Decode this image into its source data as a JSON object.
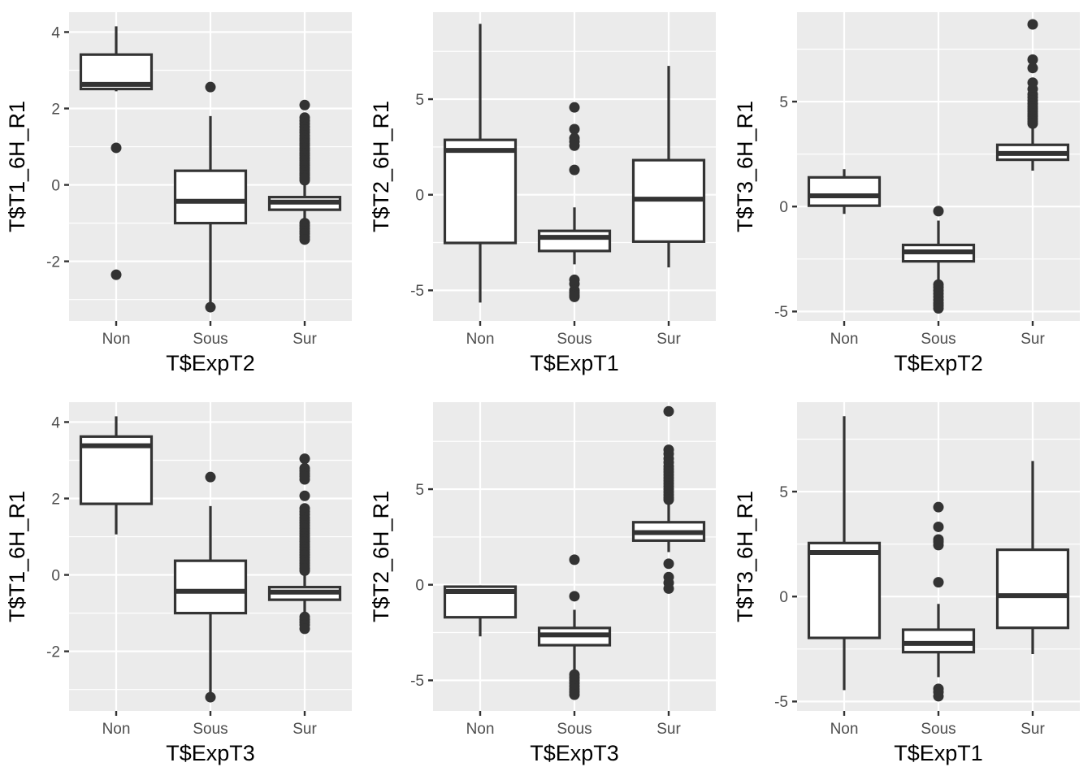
{
  "figure": {
    "rows": 2,
    "cols": 3,
    "background_color": "#FFFFFF",
    "panel_background_color": "#EBEBEB",
    "grid_color": "#FFFFFF",
    "box_stroke_color": "#333333",
    "box_fill_color": "#FFFFFF",
    "outlier_color": "#333333",
    "tick_text_color": "#4D4D4D",
    "axis_title_color": "#000000",
    "tick_mark_color": "#333333"
  },
  "chart_data": [
    {
      "type": "boxplot",
      "ylabel": "T$T1_6H_R1",
      "xlabel": "T$ExpT2",
      "categories": [
        "Non",
        "Sous",
        "Sur"
      ],
      "yticks": [
        -2,
        0,
        2,
        4
      ],
      "yticks_minor": [
        -3,
        -1,
        1,
        3
      ],
      "ylim": [
        -3.56,
        4.52
      ],
      "grid": true,
      "legend": "none",
      "boxes": [
        {
          "category": "Non",
          "q1": 2.51,
          "median": 2.63,
          "q3": 3.41,
          "whisker_low": 2.45,
          "whisker_high": 4.15,
          "outliers": [
            0.97,
            -2.35
          ]
        },
        {
          "category": "Sous",
          "q1": -1.0,
          "median": -0.43,
          "q3": 0.37,
          "whisker_low": -3.12,
          "whisker_high": 1.8,
          "outliers": [
            2.56,
            -3.2
          ]
        },
        {
          "category": "Sur",
          "q1": -0.65,
          "median": -0.45,
          "q3": -0.32,
          "whisker_low": -0.97,
          "whisker_high": 0.1,
          "outliers": [
            2.09,
            1.76,
            1.68,
            1.6,
            1.52,
            1.44,
            1.37,
            1.29,
            1.22,
            1.16,
            1.09,
            1.03,
            0.96,
            0.9,
            0.83,
            0.77,
            0.7,
            0.64,
            0.57,
            0.51,
            0.44,
            0.38,
            0.31,
            0.25,
            0.18,
            0.12,
            -1.0,
            -1.07,
            -1.14,
            -1.21,
            -1.28,
            -1.36,
            -1.43
          ]
        }
      ]
    },
    {
      "type": "boxplot",
      "ylabel": "T$T2_6H_R1",
      "xlabel": "T$ExpT1",
      "categories": [
        "Non",
        "Sous",
        "Sur"
      ],
      "yticks": [
        -5,
        0,
        5
      ],
      "yticks_minor": [
        -2.5,
        2.5,
        7.5
      ],
      "ylim": [
        -6.6,
        9.55
      ],
      "grid": true,
      "legend": "none",
      "boxes": [
        {
          "category": "Non",
          "q1": -2.52,
          "median": 2.32,
          "q3": 2.87,
          "whisker_low": -5.64,
          "whisker_high": 8.94,
          "outliers": []
        },
        {
          "category": "Sous",
          "q1": -2.94,
          "median": -2.23,
          "q3": -1.89,
          "whisker_low": -3.64,
          "whisker_high": -0.66,
          "outliers": [
            4.57,
            3.43,
            2.96,
            2.78,
            2.57,
            1.3,
            -4.45,
            -4.66,
            -5.0,
            -5.12,
            -5.25,
            -5.34
          ]
        },
        {
          "category": "Sur",
          "q1": -2.45,
          "median": -0.23,
          "q3": 1.81,
          "whisker_low": -3.8,
          "whisker_high": 6.74,
          "outliers": []
        }
      ]
    },
    {
      "type": "boxplot",
      "ylabel": "T$T3_6H_R1",
      "xlabel": "T$ExpT2",
      "categories": [
        "Non",
        "Sous",
        "Sur"
      ],
      "yticks": [
        -5,
        0,
        5
      ],
      "yticks_minor": [
        -2.5,
        2.5,
        7.5
      ],
      "ylim": [
        -5.45,
        9.26
      ],
      "grid": true,
      "legend": "none",
      "boxes": [
        {
          "category": "Non",
          "q1": 0.04,
          "median": 0.51,
          "q3": 1.39,
          "whisker_low": -0.35,
          "whisker_high": 1.78,
          "outliers": []
        },
        {
          "category": "Sous",
          "q1": -2.61,
          "median": -2.16,
          "q3": -1.83,
          "whisker_low": -3.58,
          "whisker_high": -0.67,
          "outliers": [
            -0.22,
            -3.72,
            -3.85,
            -4.0,
            -4.15,
            -4.3,
            -4.45,
            -4.6,
            -4.72,
            -4.85
          ]
        },
        {
          "category": "Sur",
          "q1": 2.23,
          "median": 2.53,
          "q3": 2.94,
          "whisker_low": 1.71,
          "whisker_high": 3.85,
          "outliers": [
            8.68,
            7.0,
            6.6,
            5.9,
            5.6,
            5.35,
            5.2,
            5.05,
            4.9,
            4.78,
            4.66,
            4.54,
            4.42,
            4.3,
            4.18,
            4.06,
            3.95
          ]
        }
      ]
    },
    {
      "type": "boxplot",
      "ylabel": "T$T1_6H_R1",
      "xlabel": "T$ExpT3",
      "categories": [
        "Non",
        "Sous",
        "Sur"
      ],
      "yticks": [
        -2,
        0,
        2,
        4
      ],
      "yticks_minor": [
        -3,
        -1,
        1,
        3
      ],
      "ylim": [
        -3.56,
        4.52
      ],
      "grid": true,
      "legend": "none",
      "boxes": [
        {
          "category": "Non",
          "q1": 1.86,
          "median": 3.38,
          "q3": 3.62,
          "whisker_low": 1.06,
          "whisker_high": 4.15,
          "outliers": []
        },
        {
          "category": "Sous",
          "q1": -1.0,
          "median": -0.43,
          "q3": 0.37,
          "whisker_low": -3.12,
          "whisker_high": 1.8,
          "outliers": [
            2.56,
            -3.2
          ]
        },
        {
          "category": "Sur",
          "q1": -0.65,
          "median": -0.45,
          "q3": -0.32,
          "whisker_low": -0.97,
          "whisker_high": 0.1,
          "outliers": [
            3.04,
            2.79,
            2.72,
            2.65,
            2.58,
            2.5,
            2.07,
            1.74,
            1.66,
            1.58,
            1.5,
            1.43,
            1.36,
            1.29,
            1.22,
            1.15,
            1.08,
            1.01,
            0.94,
            0.87,
            0.8,
            0.73,
            0.66,
            0.59,
            0.52,
            0.45,
            0.38,
            0.31,
            0.24,
            0.17,
            0.11,
            -1.1,
            -1.17,
            -1.24,
            -1.31,
            -1.41
          ]
        }
      ]
    },
    {
      "type": "boxplot",
      "ylabel": "T$T2_6H_R1",
      "xlabel": "T$ExpT3",
      "categories": [
        "Non",
        "Sous",
        "Sur"
      ],
      "yticks": [
        -5,
        0,
        5
      ],
      "yticks_minor": [
        -2.5,
        2.5,
        7.5
      ],
      "ylim": [
        -6.6,
        9.55
      ],
      "grid": true,
      "legend": "none",
      "boxes": [
        {
          "category": "Non",
          "q1": -1.7,
          "median": -0.35,
          "q3": -0.1,
          "whisker_low": -2.7,
          "whisker_high": -0.03,
          "outliers": []
        },
        {
          "category": "Sous",
          "q1": -3.16,
          "median": -2.62,
          "q3": -2.26,
          "whisker_low": -4.48,
          "whisker_high": -1.31,
          "outliers": [
            1.31,
            -0.6,
            -4.7,
            -4.85,
            -5.0,
            -5.15,
            -5.3,
            -5.45,
            -5.6,
            -5.75
          ]
        },
        {
          "category": "Sur",
          "q1": 2.31,
          "median": 2.73,
          "q3": 3.27,
          "whisker_low": 1.71,
          "whisker_high": 4.22,
          "outliers": [
            9.07,
            7.06,
            6.85,
            6.6,
            6.4,
            6.2,
            6.05,
            5.9,
            5.75,
            5.6,
            5.45,
            5.3,
            5.15,
            5.0,
            4.85,
            4.7,
            4.55,
            4.45,
            1.1,
            0.4,
            0.1,
            -0.2
          ]
        }
      ]
    },
    {
      "type": "boxplot",
      "ylabel": "T$T3_6H_R1",
      "xlabel": "T$ExpT1",
      "categories": [
        "Non",
        "Sous",
        "Sur"
      ],
      "yticks": [
        -5,
        0,
        5
      ],
      "yticks_minor": [
        -2.5,
        2.5,
        7.5
      ],
      "ylim": [
        -5.45,
        9.26
      ],
      "grid": true,
      "legend": "none",
      "boxes": [
        {
          "category": "Non",
          "q1": -1.97,
          "median": 2.1,
          "q3": 2.55,
          "whisker_low": -4.46,
          "whisker_high": 8.59,
          "outliers": []
        },
        {
          "category": "Sous",
          "q1": -2.65,
          "median": -2.23,
          "q3": -1.58,
          "whisker_low": -3.84,
          "whisker_high": -0.35,
          "outliers": [
            4.26,
            3.32,
            2.72,
            2.6,
            2.45,
            0.68,
            -4.4,
            -4.55,
            -4.75
          ]
        },
        {
          "category": "Sur",
          "q1": -1.49,
          "median": 0.04,
          "q3": 2.23,
          "whisker_low": -2.74,
          "whisker_high": 6.46,
          "outliers": []
        }
      ]
    }
  ]
}
